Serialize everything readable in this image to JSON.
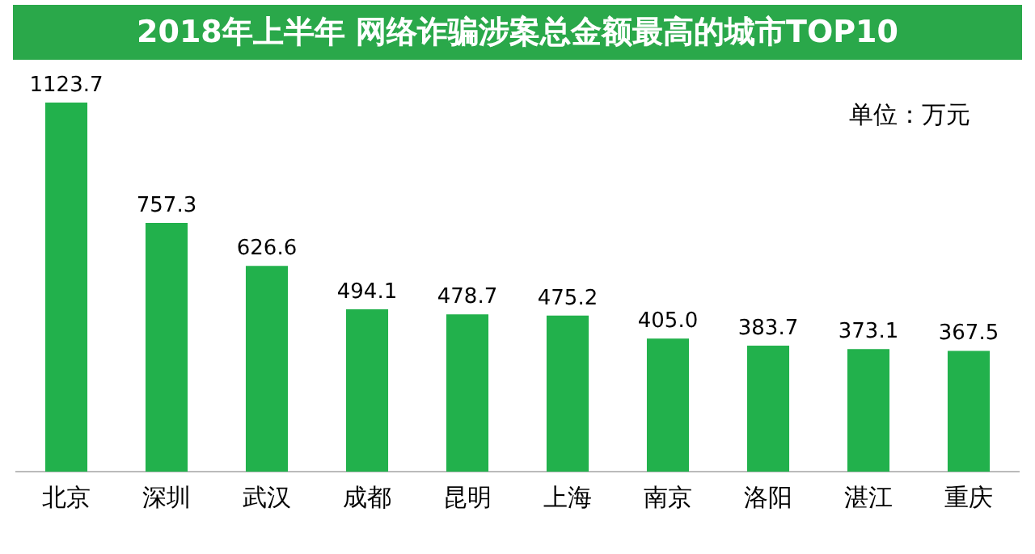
{
  "chart_data": {
    "type": "bar",
    "title": "2018年上半年 网络诈骗涉案总金额最高的城市TOP10",
    "categories": [
      "北京",
      "深圳",
      "武汉",
      "成都",
      "昆明",
      "上海",
      "南京",
      "洛阳",
      "湛江",
      "重庆"
    ],
    "values": [
      1123.7,
      757.3,
      626.6,
      494.1,
      478.7,
      475.2,
      405.0,
      383.7,
      373.1,
      367.5
    ],
    "value_labels": [
      "1123.7",
      "757.3",
      "626.6",
      "494.1",
      "478.7",
      "475.2",
      "405.0",
      "383.7",
      "373.1",
      "367.5"
    ],
    "color": "#22b14c",
    "annotations": [
      "单位：万元"
    ],
    "grid": false,
    "legend": false,
    "tick_labels": "x"
  }
}
